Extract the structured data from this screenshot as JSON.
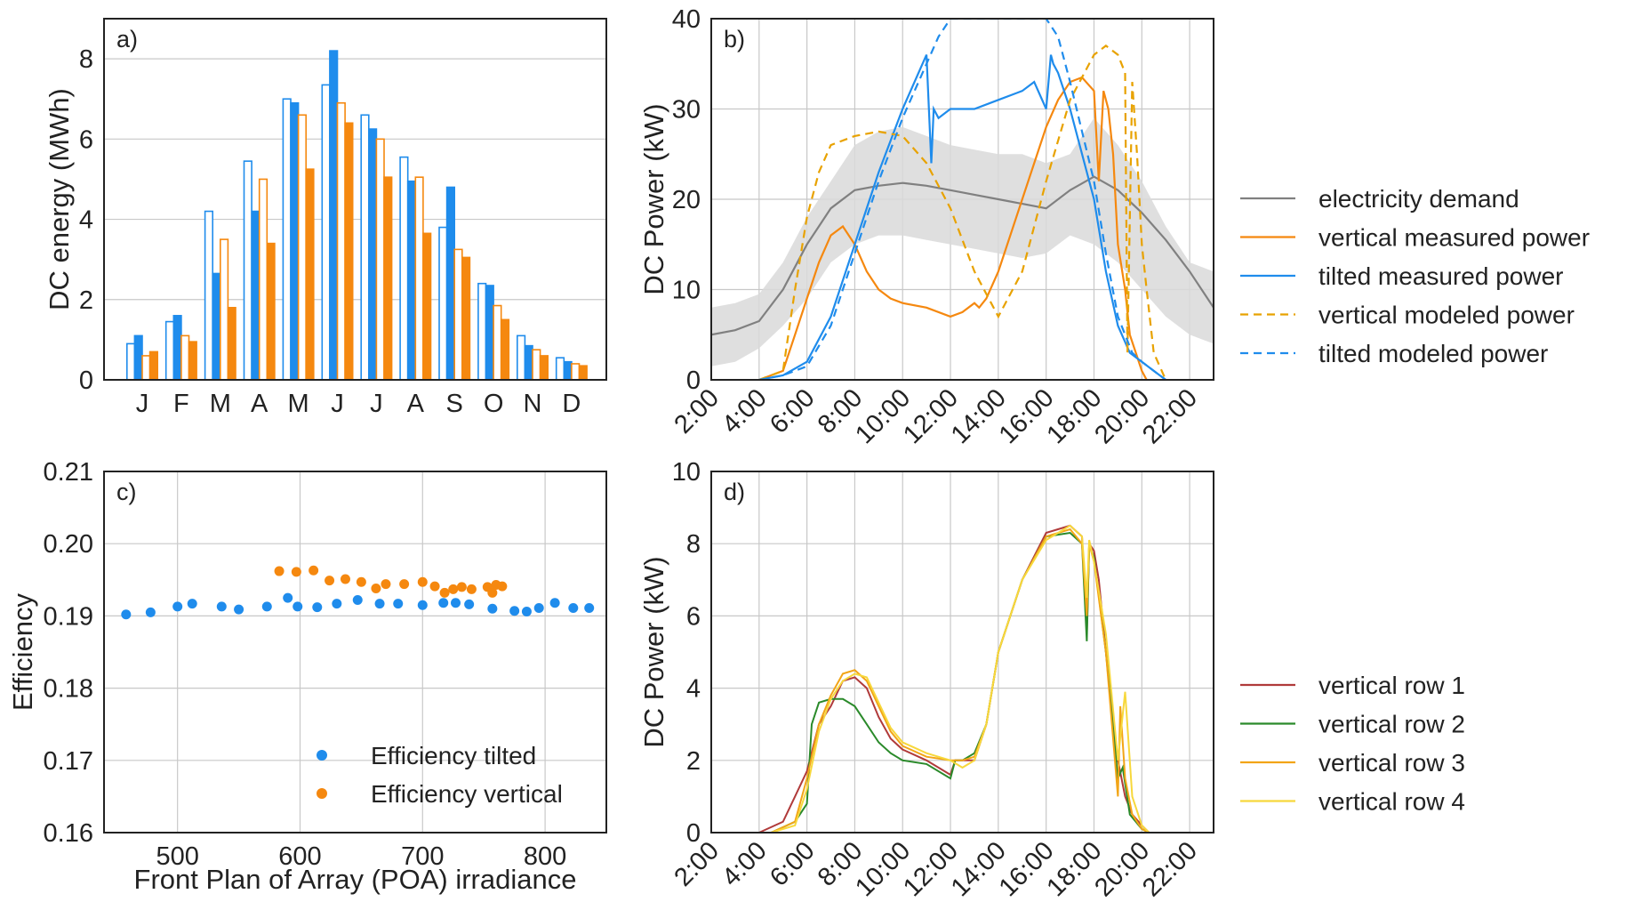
{
  "colors": {
    "blue": "#1f8cec",
    "orange": "#f5880f",
    "demand": "#808080",
    "band": "#d9d9d9",
    "vmod": "#e8a200",
    "row1": "#b03a3a",
    "row2": "#2a8a2a",
    "row3": "#f2a517",
    "row4": "#f7d83c"
  },
  "time_ticks": [
    "2:00",
    "4:00",
    "6:00",
    "8:00",
    "10:00",
    "12:00",
    "14:00",
    "16:00",
    "18:00",
    "20:00",
    "22:00"
  ],
  "chart_data": [
    {
      "type": "bar",
      "panel_label": "a)",
      "ylabel": "DC energy (MWh)",
      "xlabel": "",
      "ylim": [
        0,
        9
      ],
      "yticks": [
        "0",
        "2",
        "4",
        "6",
        "8"
      ],
      "grid": true,
      "categories": [
        "J",
        "F",
        "M",
        "A",
        "M",
        "J",
        "J",
        "A",
        "S",
        "O",
        "N",
        "D"
      ],
      "series": [
        {
          "style": "tilted modeled (outline)",
          "values": [
            0.9,
            1.45,
            4.2,
            5.45,
            7.0,
            7.35,
            6.6,
            5.55,
            3.8,
            2.4,
            1.1,
            0.55
          ]
        },
        {
          "style": "tilted measured",
          "values": [
            1.1,
            1.6,
            2.65,
            4.2,
            6.9,
            8.2,
            6.25,
            4.95,
            4.8,
            2.35,
            0.85,
            0.45
          ]
        },
        {
          "style": "vertical modeled (outline)",
          "values": [
            0.6,
            1.1,
            3.5,
            5.0,
            6.6,
            6.9,
            6.0,
            5.05,
            3.25,
            1.85,
            0.75,
            0.4
          ]
        },
        {
          "style": "vertical measured",
          "values": [
            0.7,
            0.95,
            1.8,
            3.4,
            5.25,
            6.4,
            5.05,
            3.65,
            3.05,
            1.5,
            0.6,
            0.35
          ]
        }
      ]
    },
    {
      "type": "line",
      "panel_label": "b)",
      "ylabel": "DC Power (kW)",
      "xlabel": "",
      "ylim": [
        0,
        40
      ],
      "xlim": [
        2,
        23
      ],
      "yticks": [
        "0",
        "10",
        "20",
        "30",
        "40"
      ],
      "grid": true,
      "legend_position": "right",
      "band": {
        "x": [
          2,
          3,
          4,
          5,
          6,
          7,
          8,
          9,
          10,
          11,
          12,
          13,
          14,
          15,
          16,
          17,
          18,
          19,
          20,
          21,
          22,
          23
        ],
        "lower": [
          1.5,
          2,
          3.5,
          6,
          9,
          13,
          15,
          16,
          16,
          15.5,
          15,
          14.5,
          14,
          13.5,
          14,
          16,
          15,
          13,
          10,
          7,
          5,
          4
        ],
        "upper": [
          8,
          8.5,
          9.5,
          13,
          18,
          22,
          26,
          27.5,
          28,
          27,
          26,
          25.5,
          25,
          25,
          24,
          25,
          29,
          26,
          22,
          17,
          13,
          12
        ]
      },
      "series": [
        {
          "name": "electricity demand",
          "x": [
            2,
            3,
            4,
            5,
            6,
            7,
            8,
            9,
            10,
            11,
            12,
            13,
            14,
            15,
            16,
            17,
            18,
            19,
            20,
            21,
            22,
            23
          ],
          "y": [
            5,
            5.5,
            6.5,
            10,
            15,
            19,
            21,
            21.5,
            21.8,
            21.5,
            21,
            20.5,
            20,
            19.5,
            19,
            21,
            22.5,
            21,
            18.5,
            15.5,
            12,
            8
          ]
        },
        {
          "name": "vertical measured power",
          "x": [
            4,
            5,
            5.5,
            6,
            6.5,
            7,
            7.5,
            8,
            8.5,
            9,
            9.5,
            10,
            11,
            12,
            12.5,
            13,
            13.2,
            13.5,
            14,
            15,
            16,
            16.5,
            17,
            17.5,
            18,
            18.2,
            18.4,
            18.6,
            18.8,
            19,
            19.3,
            19.5,
            20,
            20.2
          ],
          "y": [
            0,
            1,
            5,
            9,
            13,
            16,
            17,
            15,
            12,
            10,
            9,
            8.5,
            8,
            7,
            7.5,
            8.5,
            8,
            9,
            12,
            20,
            28,
            31,
            33,
            33.5,
            32,
            22,
            32,
            30,
            25,
            15,
            10,
            5,
            1,
            0
          ]
        },
        {
          "name": "tilted measured power",
          "x": [
            4,
            5,
            6,
            7,
            8,
            9,
            10,
            11,
            11.2,
            11.3,
            11.5,
            12,
            13,
            14,
            15,
            15.5,
            16,
            16.2,
            16.3,
            16.5,
            17,
            18,
            18.5,
            19,
            19.5,
            20,
            20.5,
            21
          ],
          "y": [
            0,
            0.5,
            2,
            7,
            15,
            23,
            30,
            36,
            24,
            30,
            29,
            30,
            30,
            31,
            32,
            33,
            30,
            36,
            35,
            34,
            30,
            20,
            12,
            6,
            3,
            2,
            1,
            0
          ]
        },
        {
          "name": "vertical modeled power",
          "x": [
            4,
            5,
            5.5,
            6,
            6.5,
            7,
            8,
            9,
            10,
            11,
            12,
            13,
            14,
            15,
            16,
            17,
            18,
            18.5,
            19,
            19.3,
            19.4,
            19.6,
            19.8,
            20,
            20.2,
            20.5,
            21
          ],
          "y": [
            0,
            1,
            10,
            18,
            23,
            26,
            27,
            27.5,
            27,
            24,
            19,
            12,
            7,
            12,
            22,
            31,
            36,
            37,
            36,
            34,
            3,
            33,
            25,
            15,
            10,
            3,
            0
          ]
        },
        {
          "name": "tilted modeled power",
          "x": [
            4,
            5,
            6,
            7,
            8,
            9,
            10,
            11,
            11.5,
            12,
            13,
            14,
            15,
            16,
            16.5,
            17,
            18,
            18.5,
            19,
            19.3,
            19.6,
            20,
            20.5,
            21
          ],
          "y": [
            0,
            0.5,
            1.5,
            6,
            14,
            22,
            29,
            35,
            38,
            40,
            40,
            40,
            40,
            40,
            38,
            33,
            22,
            14,
            7,
            5,
            3,
            2,
            1,
            0
          ]
        }
      ]
    },
    {
      "type": "scatter",
      "panel_label": "c)",
      "ylabel": "Efficiency",
      "xlabel": "Front Plan of Array (POA) irradiance",
      "xlim": [
        440,
        850
      ],
      "ylim": [
        0.16,
        0.21
      ],
      "xticks": [
        "500",
        "600",
        "700",
        "800"
      ],
      "yticks": [
        "0.16",
        "0.17",
        "0.18",
        "0.19",
        "0.20",
        "0.21"
      ],
      "grid": true,
      "legend_position": "lower right",
      "series": [
        {
          "name": "Efficiency tilted",
          "x": [
            458,
            478,
            500,
            512,
            536,
            550,
            573,
            590,
            598,
            614,
            630,
            647,
            665,
            680,
            700,
            717,
            727,
            738,
            757,
            775,
            785,
            795,
            808,
            823,
            836
          ],
          "y": [
            0.1902,
            0.1905,
            0.1913,
            0.1917,
            0.1913,
            0.1909,
            0.1913,
            0.1925,
            0.1913,
            0.1912,
            0.1917,
            0.1922,
            0.1917,
            0.1917,
            0.1915,
            0.1918,
            0.1918,
            0.1916,
            0.191,
            0.1907,
            0.1906,
            0.1911,
            0.1918,
            0.1911,
            0.1911
          ]
        },
        {
          "name": "Efficiency vertical",
          "x": [
            583,
            597,
            611,
            624,
            637,
            650,
            662,
            670,
            685,
            700,
            710,
            718,
            725,
            732,
            740,
            753,
            757,
            760,
            765
          ],
          "y": [
            0.1962,
            0.1961,
            0.1963,
            0.1949,
            0.1951,
            0.1947,
            0.1938,
            0.1944,
            0.1944,
            0.1947,
            0.1941,
            0.1932,
            0.1937,
            0.194,
            0.1937,
            0.194,
            0.1932,
            0.1943,
            0.1941
          ]
        }
      ]
    },
    {
      "type": "line",
      "panel_label": "d)",
      "ylabel": "DC Power (kW)",
      "xlabel": "",
      "xlim": [
        2,
        23
      ],
      "ylim": [
        0,
        10
      ],
      "yticks": [
        "0",
        "2",
        "4",
        "6",
        "8",
        "10"
      ],
      "grid": true,
      "legend_position": "right",
      "series": [
        {
          "name": "vertical row 1",
          "x": [
            4,
            5,
            5.5,
            6,
            6.5,
            7,
            7.5,
            8,
            8.5,
            9,
            9.5,
            10,
            11,
            12,
            12.2,
            12.5,
            13,
            13.5,
            14,
            15,
            16,
            17,
            17.5,
            17.7,
            17.8,
            18,
            18.2,
            18.5,
            19,
            19.3,
            19.6,
            20,
            20.3
          ],
          "y": [
            0,
            0.3,
            1,
            1.7,
            3,
            3.5,
            4.2,
            4.3,
            4,
            3.2,
            2.6,
            2.3,
            2,
            1.6,
            2,
            2,
            2,
            3,
            5,
            7,
            8.3,
            8.5,
            8.2,
            5.5,
            8,
            7.8,
            7,
            5,
            2,
            1,
            0.5,
            0.2,
            0
          ]
        },
        {
          "name": "vertical row 2",
          "x": [
            4.5,
            5.5,
            6,
            6.2,
            6.5,
            7,
            7.5,
            8,
            8.5,
            9,
            9.5,
            10,
            11,
            12,
            12.2,
            12.5,
            13,
            13.5,
            14,
            15,
            16,
            17,
            17.5,
            17.7,
            17.8,
            18,
            18.5,
            19,
            19.2,
            19.5,
            20,
            20.3
          ],
          "y": [
            0,
            0.3,
            0.8,
            3,
            3.6,
            3.7,
            3.7,
            3.5,
            3,
            2.5,
            2.2,
            2,
            1.9,
            1.5,
            2,
            2,
            2.2,
            3,
            5,
            7,
            8.2,
            8.3,
            8,
            5.3,
            8,
            7.6,
            5,
            1.5,
            1.8,
            0.5,
            0.1,
            0
          ]
        },
        {
          "name": "vertical row 3",
          "x": [
            4.5,
            5.5,
            6,
            6.5,
            7,
            7.5,
            8,
            8.5,
            9,
            9.5,
            10,
            11,
            12,
            12.5,
            13,
            13.5,
            14,
            15,
            16,
            17,
            17.5,
            17.7,
            17.8,
            18,
            18.5,
            19,
            19.1,
            19.3,
            19.6,
            20,
            20.3
          ],
          "y": [
            0,
            0.3,
            1.5,
            3,
            3.8,
            4.4,
            4.5,
            4.2,
            3.5,
            2.8,
            2.4,
            2.1,
            2,
            2,
            2.1,
            3,
            5,
            7,
            8.2,
            8.4,
            8,
            6,
            8,
            7.5,
            5,
            1,
            3.5,
            1.5,
            0.5,
            0.1,
            0
          ]
        },
        {
          "name": "vertical row 4",
          "x": [
            4.5,
            5.5,
            6,
            6.5,
            7,
            7.5,
            8,
            8.5,
            9,
            9.5,
            10,
            11,
            12,
            12.5,
            13,
            13.5,
            14,
            15,
            16,
            17,
            17.5,
            17.7,
            17.8,
            18,
            18.5,
            19,
            19.3,
            19.6,
            20,
            20.3
          ],
          "y": [
            0,
            0.2,
            1.2,
            2.8,
            3.7,
            4.2,
            4.4,
            4.3,
            3.6,
            2.9,
            2.5,
            2.2,
            2,
            1.8,
            2,
            3,
            5,
            7,
            8.1,
            8.5,
            8.2,
            6.5,
            8.1,
            7.5,
            5.5,
            2,
            3.9,
            1,
            0.2,
            0
          ]
        }
      ]
    }
  ]
}
